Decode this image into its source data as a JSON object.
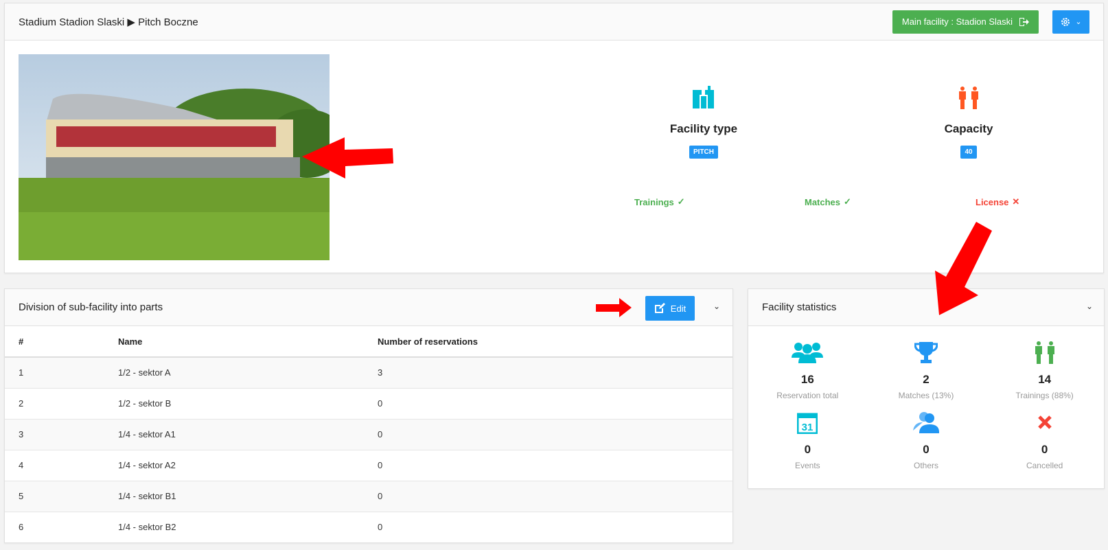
{
  "header": {
    "breadcrumb_parent": "Stadium Stadion Slaski",
    "breadcrumb_separator": "▶",
    "breadcrumb_current": "Pitch Boczne",
    "main_facility_label": "Main facility : Stadion Slaski",
    "settings_icon": "gear-icon"
  },
  "facility": {
    "type_title": "Facility type",
    "type_value": "PITCH",
    "capacity_title": "Capacity",
    "capacity_value": "40",
    "flags": [
      {
        "label": "Trainings",
        "enabled": true,
        "color": "#4caf50"
      },
      {
        "label": "Matches",
        "enabled": true,
        "color": "#4caf50"
      },
      {
        "label": "License",
        "enabled": false,
        "color": "#f44336"
      }
    ]
  },
  "division": {
    "title": "Division of sub-facility into parts",
    "edit_label": "Edit",
    "columns": [
      "#",
      "Name",
      "Number of reservations"
    ],
    "rows": [
      [
        "1",
        "1/2 - sektor A",
        "3"
      ],
      [
        "2",
        "1/2 - sektor B",
        "0"
      ],
      [
        "3",
        "1/4 - sektor A1",
        "0"
      ],
      [
        "4",
        "1/4 - sektor A2",
        "0"
      ],
      [
        "5",
        "1/4 - sektor B1",
        "0"
      ],
      [
        "6",
        "1/4 - sektor B2",
        "0"
      ]
    ]
  },
  "statistics": {
    "title": "Facility statistics",
    "items": [
      {
        "value": "16",
        "label": "Reservation total",
        "icon": "users-icon",
        "color": "#00bcd4"
      },
      {
        "value": "2",
        "label": "Matches (13%)",
        "icon": "trophy-icon",
        "color": "#2196f3"
      },
      {
        "value": "14",
        "label": "Trainings (88%)",
        "icon": "people-icon",
        "color": "#4caf50"
      },
      {
        "value": "0",
        "label": "Events",
        "icon": "calendar-icon",
        "color": "#00bcd4"
      },
      {
        "value": "0",
        "label": "Others",
        "icon": "user-icon",
        "color": "#2196f3"
      },
      {
        "value": "0",
        "label": "Cancelled",
        "icon": "x-icon",
        "color": "#f44336"
      }
    ]
  },
  "colors": {
    "primary": "#2196f3",
    "success": "#4caf50",
    "danger": "#f44336",
    "annotation": "#ff0000"
  }
}
